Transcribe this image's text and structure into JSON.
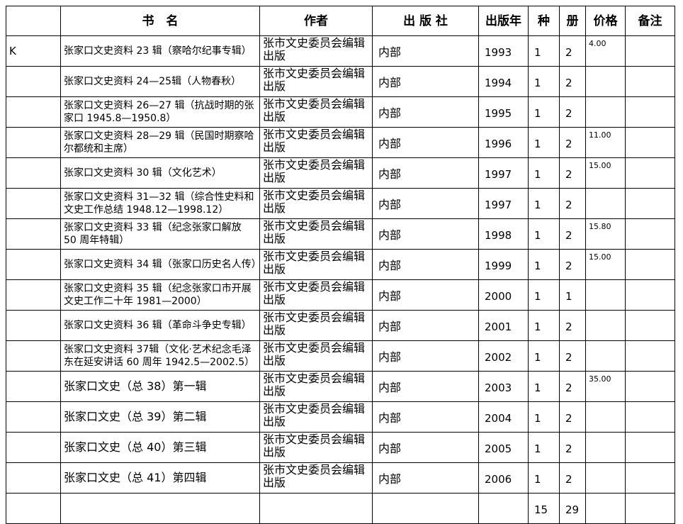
{
  "table": {
    "header": {
      "call": "",
      "title": "书　名",
      "author": "作者",
      "publisher": "出 版 社",
      "year": "出版年",
      "kinds": "种",
      "volumes": "册",
      "price": "价格",
      "note": "备注"
    },
    "rows": [
      {
        "call": "K",
        "title": "张家口文史资料 23 辑（察哈尔纪事专辑）",
        "author": "张市文史委员会编辑出版",
        "publisher": "内部",
        "year": "1993",
        "kinds": "1",
        "volumes": "2",
        "price": "4.00"
      },
      {
        "title": "张家口文史资料 24—25辑（人物春秋）",
        "author": "张市文史委员会编辑出版",
        "publisher": "内部",
        "year": "1994",
        "kinds": "1",
        "volumes": "2"
      },
      {
        "title": "张家口文史资料 26—27 辑（抗战时期的张家口 1945.8—1950.8）",
        "author": "张市文史委员会编辑出版",
        "publisher": "内部",
        "year": "1995",
        "kinds": "1",
        "volumes": "2"
      },
      {
        "title": "张家口文史资料 28—29 辑（民国时期察哈尔都统和主席）",
        "author": "张市文史委员会编辑出版",
        "publisher": "内部",
        "year": "1996",
        "kinds": "1",
        "volumes": "2",
        "price": "11.00"
      },
      {
        "title": "张家口文史资料 30 辑（文化艺术）",
        "author": "张市文史委员会编辑出版",
        "publisher": "内部",
        "year": "1997",
        "kinds": "1",
        "volumes": "2",
        "price": "15.00"
      },
      {
        "title": "张家口文史资料 31—32 辑（综合性史料和文史工作总结 1948.12—1998.12）",
        "author": "张市文史委员会编辑出版",
        "publisher": "内部",
        "year": "1997",
        "kinds": "1",
        "volumes": "2"
      },
      {
        "title": "张家口文史资料 33 辑（纪念张家口解放 50 周年特辑）",
        "author": "张市文史委员会编辑出版",
        "publisher": "内部",
        "year": "1998",
        "kinds": "1",
        "volumes": "2",
        "price": "15.80"
      },
      {
        "title": "张家口文史资料 34 辑（张家口历史名人传）",
        "author": "张市文史委员会编辑出版",
        "publisher": "内部",
        "year": "1999",
        "kinds": "1",
        "volumes": "2",
        "price": "15.00"
      },
      {
        "title": "张家口文史资料 35 辑（纪念张家口市开展文史工作二十年 1981—2000）",
        "author": "张市文史委员会编辑出版",
        "publisher": "内部",
        "year": "2000",
        "kinds": "1",
        "volumes": "1"
      },
      {
        "title": "张家口文史资料 36 辑（革命斗争史专辑）",
        "author": "张市文史委员会编辑出版",
        "publisher": "内部",
        "year": "2001",
        "kinds": "1",
        "volumes": "2"
      },
      {
        "title": "张家口文史资料 37辑（文化·艺术纪念毛泽东在延安讲话 60 周年 1942.5—2002.5）",
        "author": "张市文史委员会编辑出版",
        "publisher": "内部",
        "year": "2002",
        "kinds": "1",
        "volumes": "2"
      },
      {
        "title": "张家口文史（总 38）第一辑",
        "author": "张市文史委员会编辑出版",
        "publisher": "内部",
        "year": "2003",
        "kinds": "1",
        "volumes": "2",
        "price": "35.00"
      },
      {
        "title": "张家口文史（总 39）第二辑",
        "author": "张市文史委员会编辑出版",
        "publisher": "内部",
        "year": "2004",
        "kinds": "1",
        "volumes": "2"
      },
      {
        "title": "张家口文史（总 40）第三辑",
        "author": "张市文史委员会编辑出版",
        "publisher": "内部",
        "year": "2005",
        "kinds": "1",
        "volumes": "2"
      },
      {
        "title": "张家口文史（总 41）第四辑",
        "author": "张市文史委员会编辑出版",
        "publisher": "内部",
        "year": "2006",
        "kinds": "1",
        "volumes": "2"
      },
      {
        "kinds": "15",
        "volumes": "29"
      }
    ]
  }
}
